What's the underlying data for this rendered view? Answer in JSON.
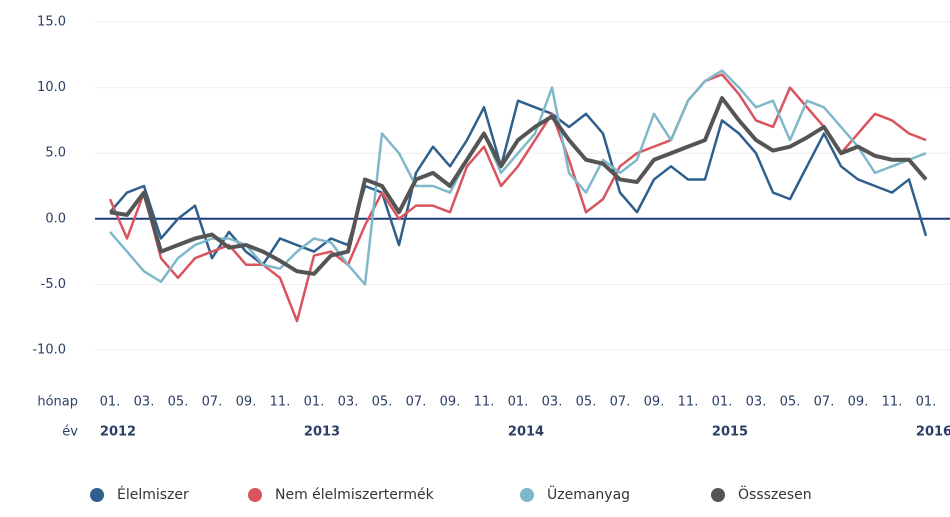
{
  "chart_data": {
    "type": "line",
    "row_label_month": "hónap",
    "row_label_year": "év",
    "categories": [
      "01.",
      null,
      "03.",
      null,
      "05.",
      null,
      "07.",
      null,
      "09.",
      null,
      "11.",
      null,
      "01.",
      null,
      "03.",
      null,
      "05.",
      null,
      "07.",
      null,
      "09.",
      null,
      "11.",
      null,
      "01.",
      null,
      "03.",
      null,
      "05.",
      null,
      "07.",
      null,
      "09.",
      null,
      "11.",
      null,
      "01.",
      null,
      "03.",
      null,
      "05.",
      null,
      "07.",
      null,
      "09.",
      null,
      "11.",
      null,
      "01."
    ],
    "years": [
      "2012",
      null,
      null,
      null,
      null,
      null,
      null,
      null,
      null,
      null,
      null,
      null,
      "2013",
      null,
      null,
      null,
      null,
      null,
      null,
      null,
      null,
      null,
      null,
      null,
      "2014",
      null,
      null,
      null,
      null,
      null,
      null,
      null,
      null,
      null,
      null,
      null,
      "2015",
      null,
      null,
      null,
      null,
      null,
      null,
      null,
      null,
      null,
      null,
      null,
      "2016"
    ],
    "ylim": [
      -10,
      15
    ],
    "yticks": [
      {
        "value": 15,
        "label": "15.0"
      },
      {
        "value": 10,
        "label": "10.0"
      },
      {
        "value": 5,
        "label": "5.0"
      },
      {
        "value": 0,
        "label": "0.0"
      },
      {
        "value": -5,
        "label": "-5.0"
      },
      {
        "value": -10,
        "label": "-10.0"
      }
    ],
    "grid": true,
    "legend": "bottom",
    "series": [
      {
        "name": "Élelmiszer",
        "color": "#2f5f8c",
        "width": 2.5,
        "values": [
          0.5,
          2.0,
          2.5,
          -1.5,
          0,
          1.0,
          -3.0,
          -1.0,
          -2.5,
          -3.5,
          -1.5,
          -2.0,
          -2.5,
          -1.5,
          -2.0,
          2.5,
          2.0,
          -2.0,
          3.5,
          5.5,
          4.0,
          6.0,
          8.5,
          4.0,
          9.0,
          8.5,
          8.0,
          7.0,
          8.0,
          6.5,
          2.0,
          0.5,
          3.0,
          4.0,
          3.0,
          3.0,
          7.5,
          6.5,
          5.0,
          2.0,
          1.5,
          4.0,
          6.5,
          4.0,
          3.0,
          2.5,
          2.0,
          3.0,
          -1.3
        ]
      },
      {
        "name": "Nem élelmiszertermék",
        "color": "#d9545e",
        "width": 2.5,
        "values": [
          1.5,
          -1.5,
          2.0,
          -3.0,
          -4.5,
          -3.0,
          -2.5,
          -2.0,
          -3.5,
          -3.5,
          -4.5,
          -7.8,
          -2.8,
          -2.5,
          -3.5,
          -0.5,
          2.0,
          0,
          1.0,
          1.0,
          0.5,
          4.0,
          5.5,
          2.5,
          4.0,
          6.0,
          8.0,
          4.5,
          0.5,
          1.5,
          4.0,
          5.0,
          5.5,
          6.0,
          9.0,
          10.5,
          11.0,
          9.5,
          7.5,
          7.0,
          10.0,
          8.5,
          7.0,
          5.0,
          6.5,
          8.0,
          7.5,
          6.5,
          6.0
        ]
      },
      {
        "name": "Üzemanyag",
        "color": "#80b8cb",
        "width": 2.5,
        "values": [
          -1.0,
          -2.5,
          -4.0,
          -4.8,
          -3.0,
          -2.0,
          -1.5,
          -1.5,
          -2.0,
          -3.5,
          -3.8,
          -2.5,
          -1.5,
          -1.8,
          -3.5,
          -5.0,
          6.5,
          5.0,
          2.5,
          2.5,
          2.0,
          4.5,
          6.5,
          3.5,
          5.0,
          6.5,
          10.0,
          3.5,
          2.0,
          4.5,
          3.5,
          4.5,
          8.0,
          6.0,
          9.0,
          10.5,
          11.3,
          10.0,
          8.5,
          9.0,
          6.0,
          9.0,
          8.5,
          7.0,
          5.5,
          3.5,
          4.0,
          4.5,
          5.0
        ]
      },
      {
        "name": "Össszesen",
        "color": "#555555",
        "width": 4,
        "values": [
          0.5,
          0.3,
          2.0,
          -2.5,
          -2.0,
          -1.5,
          -1.2,
          -2.2,
          -2.0,
          -2.5,
          -3.2,
          -4.0,
          -4.2,
          -2.8,
          -2.5,
          3.0,
          2.5,
          0.5,
          3.0,
          3.5,
          2.5,
          4.5,
          6.5,
          4.0,
          6.0,
          7.0,
          7.8,
          6.0,
          4.5,
          4.2,
          3.0,
          2.8,
          4.5,
          5.0,
          5.5,
          6.0,
          9.2,
          7.5,
          6.0,
          5.2,
          5.5,
          6.2,
          7.0,
          5.0,
          5.5,
          4.8,
          4.5,
          4.5,
          3.0
        ]
      }
    ]
  }
}
